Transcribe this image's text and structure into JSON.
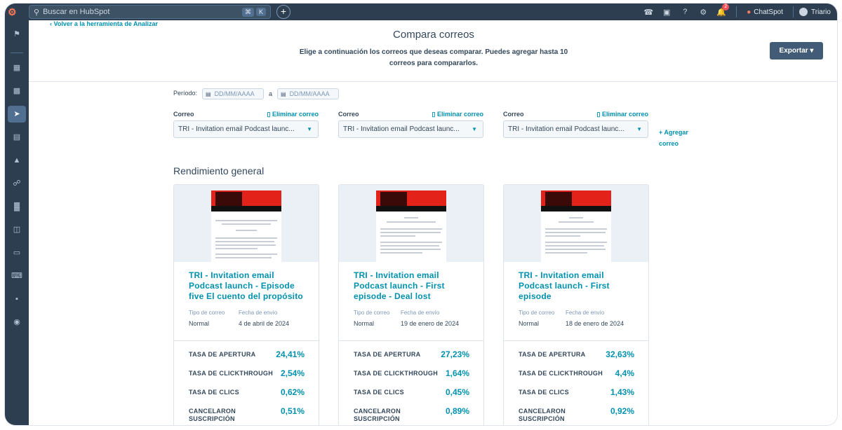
{
  "topbar": {
    "search_placeholder": "Buscar en HubSpot",
    "kbd1": "⌘",
    "kbd2": "K",
    "chatspot": "ChatSpot",
    "user": "Triario",
    "notifications_count": "2"
  },
  "header": {
    "back_link": "‹  Volver a la herramienta de Analizar",
    "title": "Compara correos",
    "subtitle": "Elige a continuación los correos que deseas comparar. Puedes agregar hasta 10 correos para compararlos.",
    "export_label": "Exportar ▾"
  },
  "filters": {
    "period_label": "Período:",
    "date_from_placeholder": "DD/MM/AAAA",
    "date_sep": "a",
    "date_to_placeholder": "DD/MM/AAAA"
  },
  "selectors": [
    {
      "label": "Correo",
      "remove": "Eliminar correo",
      "value": "TRI - Invitation email Podcast launc..."
    },
    {
      "label": "Correo",
      "remove": "Eliminar correo",
      "value": "TRI - Invitation email Podcast launc..."
    },
    {
      "label": "Correo",
      "remove": "Eliminar correo",
      "value": "TRI - Invitation email Podcast launc..."
    }
  ],
  "add_email": "+ Agregar correo",
  "section_title": "Rendimiento general",
  "cards": [
    {
      "title": "TRI - Invitation email Podcast launch - Episode five El cuento del propósito",
      "type_label": "Tipo de correo",
      "date_label": "Fecha de envío",
      "type_value": "Normal",
      "date_value": "4 de abril de 2024",
      "stats": [
        {
          "label": "TASA DE APERTURA",
          "value": "24,41%"
        },
        {
          "label": "TASA DE CLICKTHROUGH",
          "value": "2,54%"
        },
        {
          "label": "TASA DE CLICS",
          "value": "0,62%"
        },
        {
          "label": "CANCELARON SUSCRIPCIÓN",
          "value": "0,51%"
        }
      ]
    },
    {
      "title": "TRI - Invitation email Podcast launch - First episode - Deal lost",
      "type_label": "Tipo de correo",
      "date_label": "Fecha de envío",
      "type_value": "Normal",
      "date_value": "19 de enero de 2024",
      "stats": [
        {
          "label": "TASA DE APERTURA",
          "value": "27,23%"
        },
        {
          "label": "TASA DE CLICKTHROUGH",
          "value": "1,64%"
        },
        {
          "label": "TASA DE CLICS",
          "value": "0,45%"
        },
        {
          "label": "CANCELARON SUSCRIPCIÓN",
          "value": "0,89%"
        }
      ]
    },
    {
      "title": "TRI - Invitation email Podcast launch - First episode",
      "type_label": "Tipo de correo",
      "date_label": "Fecha de envío",
      "type_value": "Normal",
      "date_value": "18 de enero de 2024",
      "stats": [
        {
          "label": "TASA DE APERTURA",
          "value": "32,63%"
        },
        {
          "label": "TASA DE CLICKTHROUGH",
          "value": "4,4%"
        },
        {
          "label": "TASA DE CLICS",
          "value": "1,43%"
        },
        {
          "label": "CANCELARON SUSCRIPCIÓN",
          "value": "0,92%"
        }
      ]
    }
  ],
  "colors": {
    "nav_bg": "#2d3e50",
    "link": "#0091ae",
    "text": "#33475b",
    "export_bg": "#425b76",
    "banner_red": "#e3221a"
  }
}
